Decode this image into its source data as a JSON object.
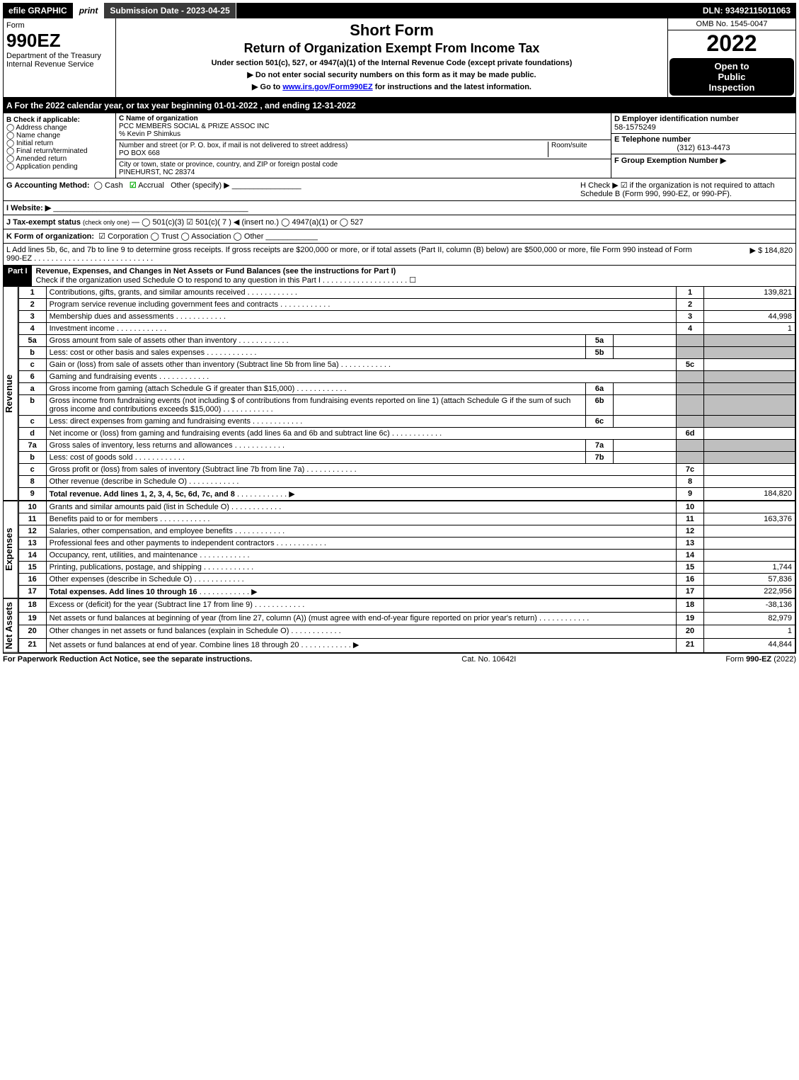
{
  "topbar": {
    "efile": "efile GRAPHIC",
    "print": "print",
    "submission": "Submission Date - 2023-04-25",
    "dln": "DLN: 93492115011063"
  },
  "header": {
    "form_label": "Form",
    "form_no": "990EZ",
    "dept": "Department of the Treasury\nInternal Revenue Service",
    "title": "Short Form",
    "subtitle": "Return of Organization Exempt From Income Tax",
    "section_note": "Under section 501(c), 527, or 4947(a)(1) of the Internal Revenue Code (except private foundations)",
    "bullet1": "▶ Do not enter social security numbers on this form as it may be made public.",
    "bullet2_pre": "▶ Go to ",
    "bullet2_link": "www.irs.gov/Form990EZ",
    "bullet2_post": " for instructions and the latest information.",
    "omb": "OMB No. 1545-0047",
    "year": "2022",
    "inspect1": "Open to",
    "inspect2": "Public",
    "inspect3": "Inspection"
  },
  "line_a": "A  For the 2022 calendar year, or tax year beginning 01-01-2022 , and ending 12-31-2022",
  "box_b": {
    "title": "B  Check if applicable:",
    "items": [
      "Address change",
      "Name change",
      "Initial return",
      "Final return/terminated",
      "Amended return",
      "Application pending"
    ]
  },
  "box_c": {
    "label": "C Name of organization",
    "org": "PCC MEMBERS SOCIAL & PRIZE ASSOC INC",
    "care_of": "% Kevin P Shimkus",
    "street_label": "Number and street (or P. O. box, if mail is not delivered to street address)",
    "room_label": "Room/suite",
    "street": "PO BOX 668",
    "city_label": "City or town, state or province, country, and ZIP or foreign postal code",
    "city": "PINEHURST, NC  28374"
  },
  "box_d": {
    "label": "D Employer identification number",
    "value": "58-1575249"
  },
  "box_e": {
    "label": "E Telephone number",
    "value": "(312) 613-4473"
  },
  "box_f": {
    "label": "F Group Exemption Number  ▶",
    "value": ""
  },
  "line_g": {
    "label": "G Accounting Method:",
    "opts": [
      "Cash",
      "Accrual",
      "Other (specify) ▶"
    ],
    "checked": "Accrual"
  },
  "line_h": "H  Check ▶ ☑ if the organization is not required to attach Schedule B (Form 990, 990-EZ, or 990-PF).",
  "line_i": "I Website: ▶",
  "line_j": {
    "pre": "J Tax-exempt status",
    "note": "(check only one)",
    "opts": "— ◯ 501(c)(3)  ☑ 501(c)( 7 ) ◀ (insert no.)  ◯ 4947(a)(1) or  ◯ 527"
  },
  "line_k": {
    "label": "K Form of organization:",
    "opts": "☑ Corporation   ◯ Trust   ◯ Association   ◯ Other"
  },
  "line_l": {
    "text": "L Add lines 5b, 6c, and 7b to line 9 to determine gross receipts. If gross receipts are $200,000 or more, or if total assets (Part II, column (B) below) are $500,000 or more, file Form 990 instead of Form 990-EZ",
    "amount": "▶ $ 184,820"
  },
  "part1": {
    "label": "Part I",
    "title": "Revenue, Expenses, and Changes in Net Assets or Fund Balances (see the instructions for Part I)",
    "check_note": "Check if the organization used Schedule O to respond to any question in this Part I",
    "check_val": "☐"
  },
  "sections": {
    "revenue": "Revenue",
    "expenses": "Expenses",
    "net": "Net Assets"
  },
  "lines": [
    {
      "n": "1",
      "d": "Contributions, gifts, grants, and similar amounts received",
      "c": "1",
      "a": "139,821"
    },
    {
      "n": "2",
      "d": "Program service revenue including government fees and contracts",
      "c": "2",
      "a": ""
    },
    {
      "n": "3",
      "d": "Membership dues and assessments",
      "c": "3",
      "a": "44,998"
    },
    {
      "n": "4",
      "d": "Investment income",
      "c": "4",
      "a": "1"
    },
    {
      "n": "5a",
      "d": "Gross amount from sale of assets other than inventory",
      "sl": "5a",
      "sv": "",
      "shade": true
    },
    {
      "n": "b",
      "d": "Less: cost or other basis and sales expenses",
      "sl": "5b",
      "sv": "",
      "shade": true
    },
    {
      "n": "c",
      "d": "Gain or (loss) from sale of assets other than inventory (Subtract line 5b from line 5a)",
      "c": "5c",
      "a": ""
    },
    {
      "n": "6",
      "d": "Gaming and fundraising events",
      "shade": true,
      "noval": true
    },
    {
      "n": "a",
      "d": "Gross income from gaming (attach Schedule G if greater than $15,000)",
      "sl": "6a",
      "sv": "",
      "shade": true
    },
    {
      "n": "b",
      "d": "Gross income from fundraising events (not including $                     of contributions from fundraising events reported on line 1) (attach Schedule G if the sum of such gross income and contributions exceeds $15,000)",
      "sl": "6b",
      "sv": "",
      "shade": true
    },
    {
      "n": "c",
      "d": "Less: direct expenses from gaming and fundraising events",
      "sl": "6c",
      "sv": "",
      "shade": true
    },
    {
      "n": "d",
      "d": "Net income or (loss) from gaming and fundraising events (add lines 6a and 6b and subtract line 6c)",
      "c": "6d",
      "a": ""
    },
    {
      "n": "7a",
      "d": "Gross sales of inventory, less returns and allowances",
      "sl": "7a",
      "sv": "",
      "shade": true
    },
    {
      "n": "b",
      "d": "Less: cost of goods sold",
      "sl": "7b",
      "sv": "",
      "shade": true
    },
    {
      "n": "c",
      "d": "Gross profit or (loss) from sales of inventory (Subtract line 7b from line 7a)",
      "c": "7c",
      "a": ""
    },
    {
      "n": "8",
      "d": "Other revenue (describe in Schedule O)",
      "c": "8",
      "a": ""
    },
    {
      "n": "9",
      "d": "Total revenue. Add lines 1, 2, 3, 4, 5c, 6d, 7c, and 8",
      "c": "9",
      "a": "184,820",
      "bold": true,
      "arrow": true
    }
  ],
  "exp_lines": [
    {
      "n": "10",
      "d": "Grants and similar amounts paid (list in Schedule O)",
      "c": "10",
      "a": ""
    },
    {
      "n": "11",
      "d": "Benefits paid to or for members",
      "c": "11",
      "a": "163,376"
    },
    {
      "n": "12",
      "d": "Salaries, other compensation, and employee benefits",
      "c": "12",
      "a": ""
    },
    {
      "n": "13",
      "d": "Professional fees and other payments to independent contractors",
      "c": "13",
      "a": ""
    },
    {
      "n": "14",
      "d": "Occupancy, rent, utilities, and maintenance",
      "c": "14",
      "a": ""
    },
    {
      "n": "15",
      "d": "Printing, publications, postage, and shipping",
      "c": "15",
      "a": "1,744"
    },
    {
      "n": "16",
      "d": "Other expenses (describe in Schedule O)",
      "c": "16",
      "a": "57,836"
    },
    {
      "n": "17",
      "d": "Total expenses. Add lines 10 through 16",
      "c": "17",
      "a": "222,956",
      "bold": true,
      "arrow": true
    }
  ],
  "net_lines": [
    {
      "n": "18",
      "d": "Excess or (deficit) for the year (Subtract line 17 from line 9)",
      "c": "18",
      "a": "-38,136"
    },
    {
      "n": "19",
      "d": "Net assets or fund balances at beginning of year (from line 27, column (A)) (must agree with end-of-year figure reported on prior year's return)",
      "c": "19",
      "a": "82,979"
    },
    {
      "n": "20",
      "d": "Other changes in net assets or fund balances (explain in Schedule O)",
      "c": "20",
      "a": "1"
    },
    {
      "n": "21",
      "d": "Net assets or fund balances at end of year. Combine lines 18 through 20",
      "c": "21",
      "a": "44,844",
      "arrow": true
    }
  ],
  "footer": {
    "left": "For Paperwork Reduction Act Notice, see the separate instructions.",
    "center": "Cat. No. 10642I",
    "right_pre": "Form ",
    "right_bold": "990-EZ",
    "right_post": " (2022)"
  }
}
